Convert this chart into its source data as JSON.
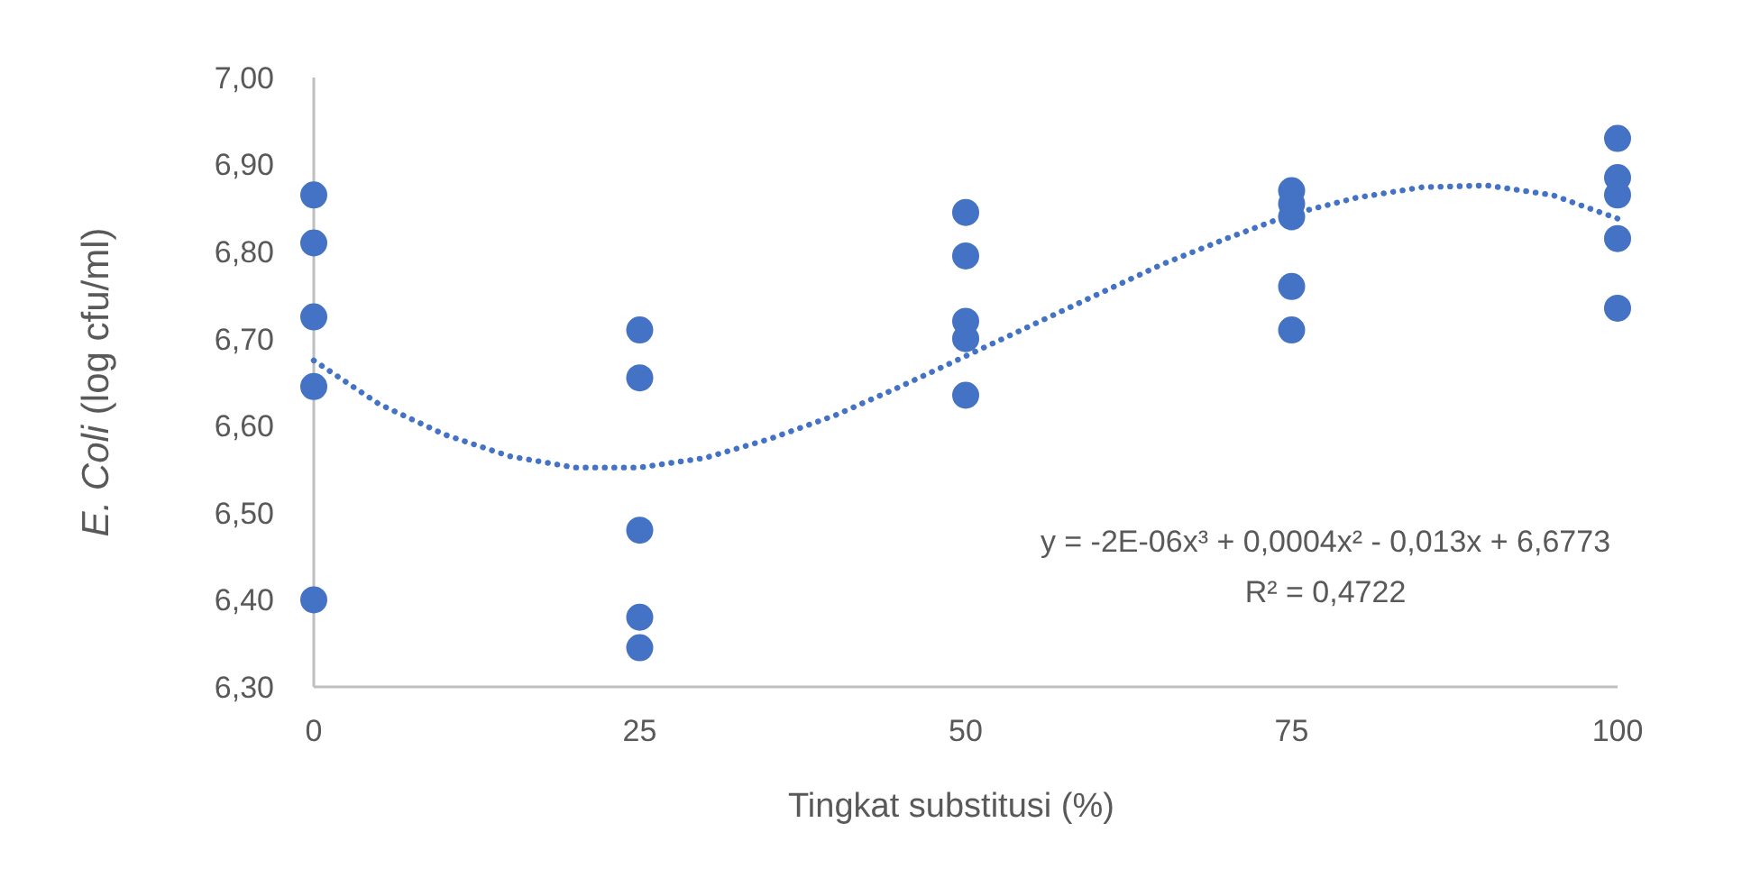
{
  "chart_data": {
    "type": "scatter",
    "xlabel": "Tingkat substitusi (%)",
    "ylabel": "E. Coli (log cfu/ml)",
    "xlim": [
      0,
      100
    ],
    "xticks": [
      0,
      25,
      50,
      75,
      100
    ],
    "ylim": [
      6.3,
      7.0
    ],
    "yticks": [
      {
        "value": 6.3,
        "label": "6,30"
      },
      {
        "value": 6.4,
        "label": "6,40"
      },
      {
        "value": 6.5,
        "label": "6,50"
      },
      {
        "value": 6.6,
        "label": "6,60"
      },
      {
        "value": 6.7,
        "label": "6,70"
      },
      {
        "value": 6.8,
        "label": "6,80"
      },
      {
        "value": 6.9,
        "label": "6,90"
      },
      {
        "value": 7.0,
        "label": "7,00"
      }
    ],
    "grid": false,
    "marker": "circle",
    "series": [
      {
        "color": "#4472c4",
        "x": [
          0,
          0,
          0,
          0,
          0,
          25,
          25,
          25,
          25,
          25,
          50,
          50,
          50,
          50,
          50,
          75,
          75,
          75,
          75,
          75,
          100,
          100,
          100,
          100,
          100
        ],
        "values": [
          6.865,
          6.81,
          6.725,
          6.645,
          6.4,
          6.71,
          6.655,
          6.48,
          6.38,
          6.345,
          6.845,
          6.795,
          6.72,
          6.7,
          6.635,
          6.87,
          6.855,
          6.84,
          6.76,
          6.71,
          6.93,
          6.885,
          6.865,
          6.815,
          6.735
        ]
      },
      {
        "type": "line",
        "color": "#4472c4",
        "line_style": "dotted",
        "marker": "none",
        "x": [
          0,
          5,
          10,
          15,
          20,
          25,
          30,
          35,
          40,
          45,
          50,
          55,
          60,
          65,
          70,
          75,
          80,
          85,
          90,
          95,
          100
        ],
        "values": [
          6.675,
          6.625,
          6.59,
          6.565,
          6.552,
          6.552,
          6.563,
          6.585,
          6.612,
          6.645,
          6.68,
          6.715,
          6.75,
          6.785,
          6.815,
          6.843,
          6.862,
          6.874,
          6.876,
          6.865,
          6.838
        ]
      }
    ],
    "annotations": [
      "y = -2E-06x³ + 0,0004x² - 0,013x + 6,6773",
      "R² = 0,4722"
    ]
  }
}
